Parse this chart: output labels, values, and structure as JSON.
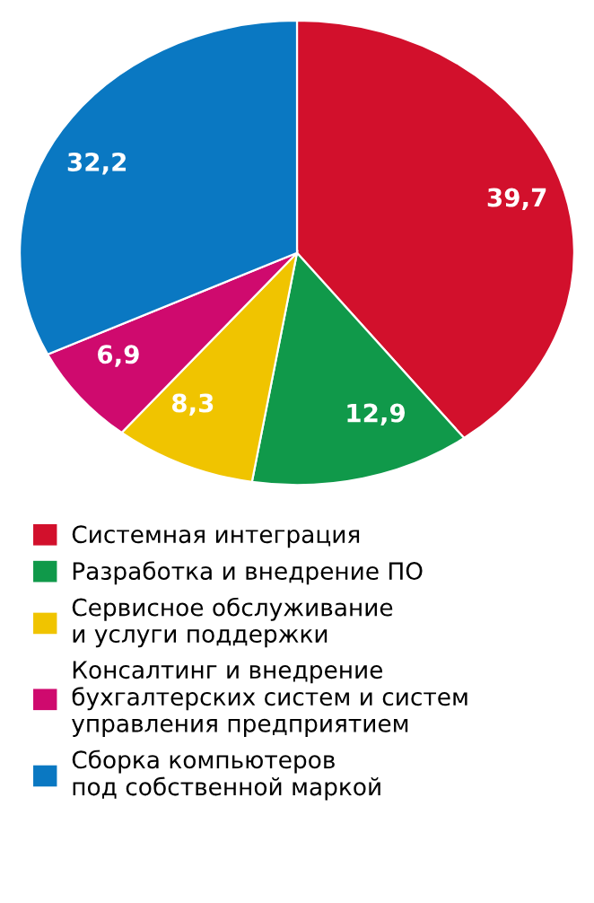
{
  "chart_data": {
    "type": "pie",
    "categories": [
      "Системная интеграция",
      "Разработка и внедрение ПО",
      "Сервисное обслуживание\nи услуги поддержки",
      "Консалтинг и внедрение\nбухгалтерских систем и систем\nуправления предприятием",
      "Сборка компьютеров\nпод собственной маркой"
    ],
    "values": [
      39.7,
      12.9,
      8.3,
      6.9,
      32.2
    ],
    "colors": [
      "#d2102c",
      "#10994a",
      "#f0c400",
      "#cf0a6e",
      "#0a78c2"
    ],
    "value_labels": [
      "39,7",
      "12,9",
      "8,3",
      "6,9",
      "32,2"
    ],
    "legend": "bottom"
  }
}
